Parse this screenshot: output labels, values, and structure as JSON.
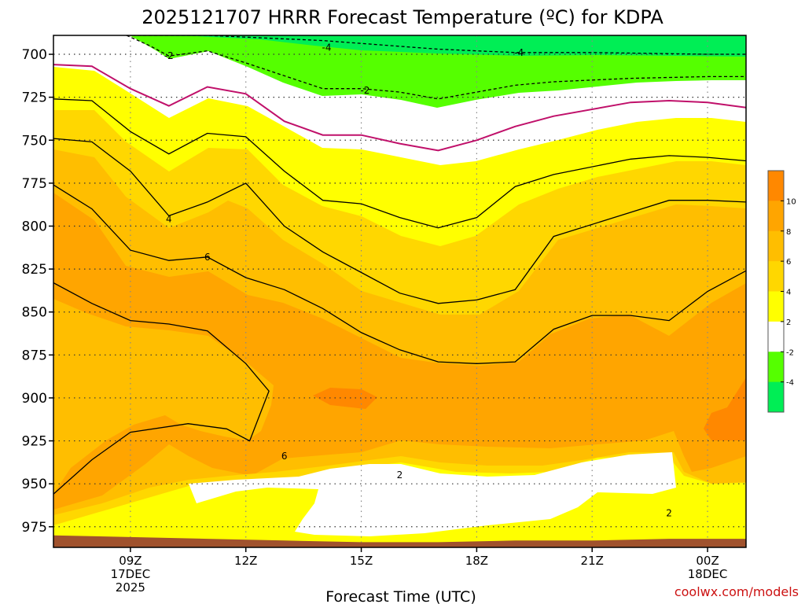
{
  "chart_data": {
    "type": "heatmap",
    "title": "2025121707 HRRR Forecast Temperature (ºC) for KDPA",
    "xlabel": "Forecast Time (UTC)",
    "ylabel": "",
    "credit": "coolwx.com/models",
    "x_ticks": [
      {
        "lines": [
          "09Z",
          "17DEC",
          "2025"
        ],
        "hour": 9
      },
      {
        "lines": [
          "12Z"
        ],
        "hour": 12
      },
      {
        "lines": [
          "15Z"
        ],
        "hour": 15
      },
      {
        "lines": [
          "18Z"
        ],
        "hour": 18
      },
      {
        "lines": [
          "21Z"
        ],
        "hour": 21
      },
      {
        "lines": [
          "00Z",
          "18DEC"
        ],
        "hour": 24
      }
    ],
    "xlim_hours": [
      7,
      25
    ],
    "y_ticks": [
      700,
      725,
      750,
      775,
      800,
      825,
      850,
      875,
      900,
      925,
      950,
      975
    ],
    "ylim_hpa": [
      689,
      987
    ],
    "grid": true,
    "colorbar": {
      "ticks": [
        10,
        8,
        6,
        4,
        2,
        -2,
        -4
      ],
      "colors": [
        "#ff8800",
        "#ffa500",
        "#ffbe00",
        "#ffd700",
        "#ffff00",
        "#ffffff",
        "#55ff00",
        "#00ee55"
      ]
    },
    "contour_labels": [
      {
        "text": "-4",
        "hour": 14.1,
        "hpa": 696
      },
      {
        "text": "-4",
        "hour": 19.1,
        "hpa": 699
      },
      {
        "text": "-2",
        "hour": 10.0,
        "hpa": 701
      },
      {
        "text": "-2",
        "hour": 15.1,
        "hpa": 721
      },
      {
        "text": "4",
        "hour": 10.0,
        "hpa": 796
      },
      {
        "text": "6",
        "hour": 11.0,
        "hpa": 818
      },
      {
        "text": "6",
        "hour": 13.0,
        "hpa": 934
      },
      {
        "text": "2",
        "hour": 16.0,
        "hpa": 945
      },
      {
        "text": "2",
        "hour": 23.0,
        "hpa": 967
      }
    ],
    "isotherms": [
      {
        "celsius": -4,
        "points": [
          [
            8.9,
            689
          ],
          [
            11,
            689
          ],
          [
            14,
            692
          ],
          [
            17,
            697
          ],
          [
            19,
            699
          ],
          [
            21,
            699
          ],
          [
            24,
            700
          ],
          [
            25,
            700
          ]
        ]
      },
      {
        "celsius": -2,
        "points": [
          [
            8.9,
            689
          ],
          [
            9.5,
            695
          ],
          [
            10,
            701
          ],
          [
            11,
            698
          ],
          [
            12,
            705
          ],
          [
            14,
            720
          ],
          [
            15,
            720
          ],
          [
            16,
            722
          ],
          [
            17,
            726
          ],
          [
            18,
            722
          ],
          [
            19,
            718
          ],
          [
            20,
            716
          ],
          [
            22,
            714
          ],
          [
            24,
            713
          ],
          [
            25,
            713
          ]
        ]
      },
      {
        "celsius": 0,
        "points": [
          [
            7,
            706
          ],
          [
            8,
            707
          ],
          [
            9,
            720
          ],
          [
            10,
            730
          ],
          [
            11,
            719
          ],
          [
            12,
            723
          ],
          [
            13,
            739
          ],
          [
            14,
            747
          ],
          [
            15,
            747
          ],
          [
            16,
            752
          ],
          [
            17,
            756
          ],
          [
            18,
            750
          ],
          [
            19,
            742
          ],
          [
            20,
            736
          ],
          [
            22,
            728
          ],
          [
            23,
            727
          ],
          [
            24,
            728
          ],
          [
            25,
            731
          ]
        ]
      },
      {
        "celsius": 2,
        "points": [
          [
            7,
            726
          ],
          [
            8,
            727
          ],
          [
            9,
            745
          ],
          [
            10,
            758
          ],
          [
            11,
            746
          ],
          [
            12,
            748
          ],
          [
            13,
            768
          ],
          [
            14,
            785
          ],
          [
            15,
            787
          ],
          [
            16,
            795
          ],
          [
            17,
            801
          ],
          [
            18,
            795
          ],
          [
            19,
            777
          ],
          [
            20,
            770
          ],
          [
            22,
            761
          ],
          [
            23,
            759
          ],
          [
            24,
            760
          ],
          [
            25,
            762
          ]
        ]
      },
      {
        "celsius": 4,
        "points": [
          [
            7,
            749
          ],
          [
            8,
            751
          ],
          [
            9,
            768
          ],
          [
            10,
            794
          ],
          [
            11,
            786
          ],
          [
            12,
            775
          ],
          [
            13,
            800
          ],
          [
            14,
            815
          ],
          [
            15,
            827
          ],
          [
            16,
            839
          ],
          [
            17,
            845
          ],
          [
            18,
            843
          ],
          [
            19,
            837
          ],
          [
            20,
            806
          ],
          [
            22,
            792
          ],
          [
            23,
            785
          ],
          [
            24,
            785
          ],
          [
            25,
            786
          ]
        ]
      },
      {
        "celsius": 6,
        "points": [
          [
            7,
            776
          ],
          [
            8,
            790
          ],
          [
            9,
            814
          ],
          [
            10,
            820
          ],
          [
            11,
            818
          ],
          [
            12,
            830
          ],
          [
            13,
            837
          ],
          [
            14,
            848
          ],
          [
            15,
            862
          ],
          [
            16,
            872
          ],
          [
            17,
            879
          ],
          [
            18,
            880
          ],
          [
            19,
            879
          ],
          [
            20,
            860
          ],
          [
            21,
            852
          ],
          [
            22,
            852
          ],
          [
            23,
            855
          ],
          [
            24,
            838
          ],
          [
            25,
            826
          ]
        ]
      },
      {
        "celsius": 8,
        "points": [
          [
            7,
            833
          ],
          [
            8,
            845
          ],
          [
            9,
            855
          ],
          [
            10,
            857
          ],
          [
            11,
            861
          ],
          [
            12,
            880
          ],
          [
            12.6,
            896
          ],
          [
            12.1,
            925
          ],
          [
            11.5,
            918
          ],
          [
            10.5,
            915
          ],
          [
            9,
            920
          ],
          [
            8,
            936
          ],
          [
            7,
            956
          ]
        ]
      }
    ],
    "surface_hpa": [
      [
        7,
        980
      ],
      [
        9,
        981
      ],
      [
        11,
        982
      ],
      [
        13,
        983
      ],
      [
        15,
        984
      ],
      [
        17,
        984
      ],
      [
        19,
        983
      ],
      [
        21,
        983
      ],
      [
        23,
        982
      ],
      [
        25,
        982
      ]
    ]
  }
}
